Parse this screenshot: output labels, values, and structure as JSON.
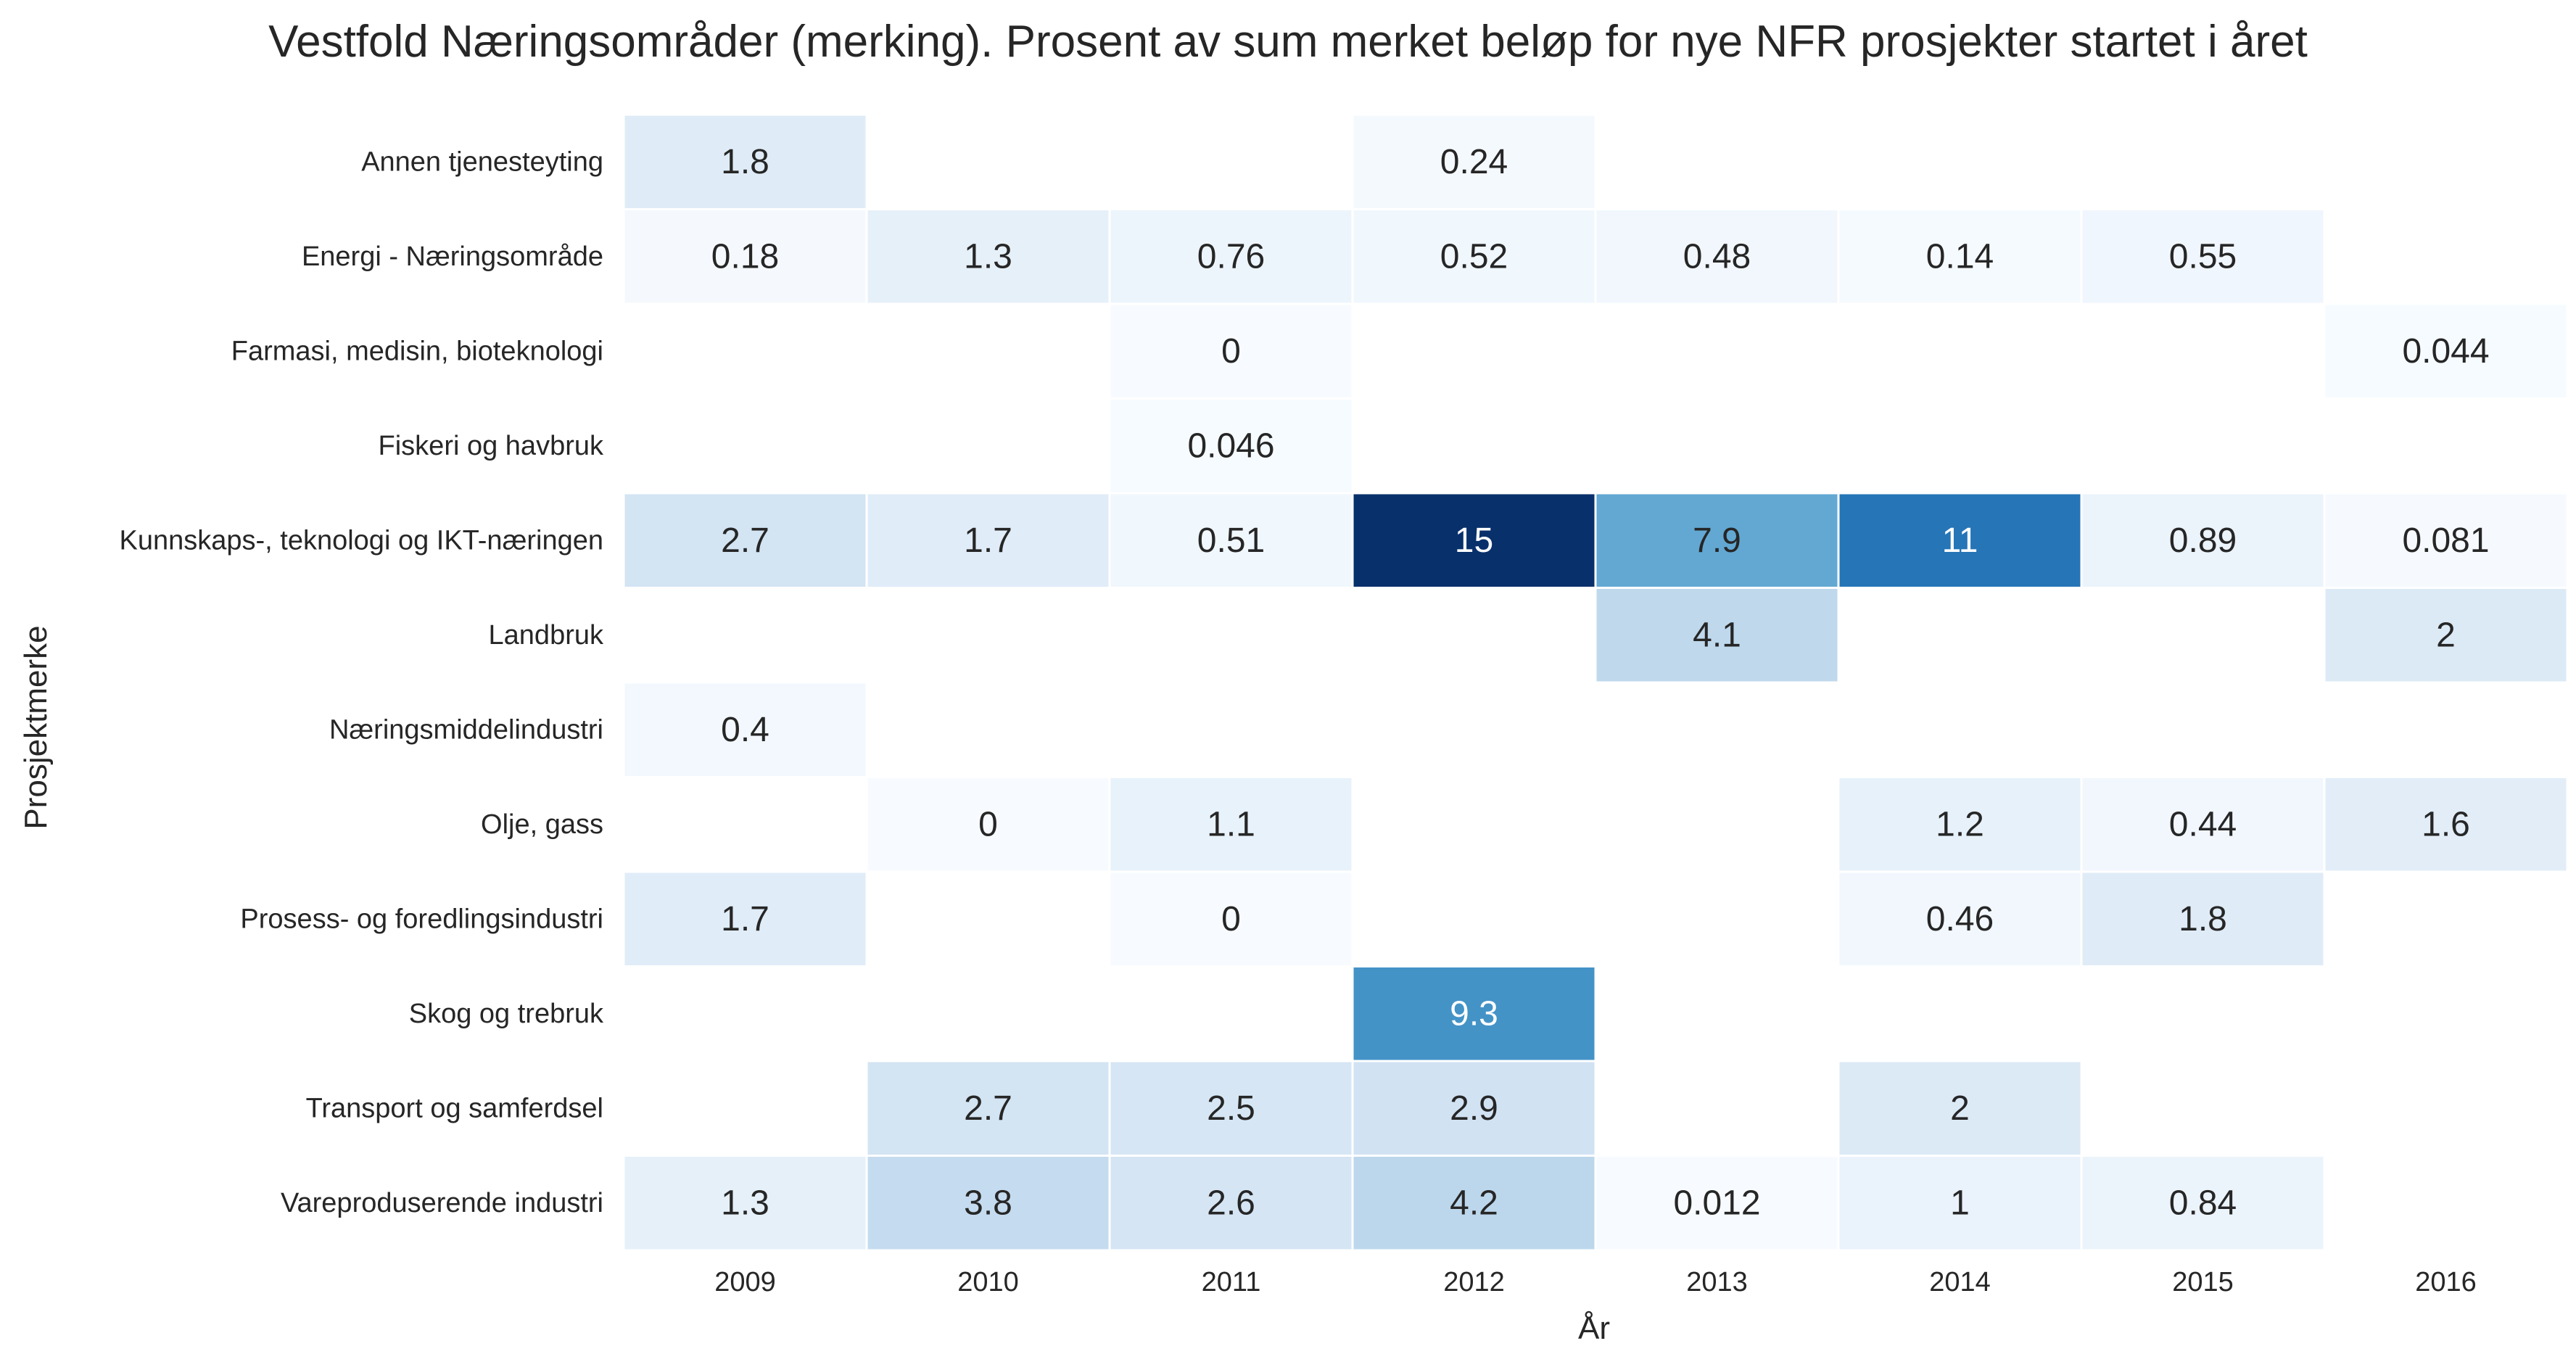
{
  "chart_data": {
    "type": "heatmap",
    "title": "Vestfold Næringsområder (merking). Prosent av sum merket beløp for nye NFR prosjekter startet i året",
    "xlabel": "År",
    "ylabel": "Prosjektmerke",
    "x": [
      "2009",
      "2010",
      "2011",
      "2012",
      "2013",
      "2014",
      "2015",
      "2016"
    ],
    "y": [
      "Annen tjenesteyting",
      "Energi - Næringsområde",
      "Farmasi, medisin, bioteknologi",
      "Fiskeri og havbruk",
      "Kunnskaps-, teknologi og IKT-næringen",
      "Landbruk",
      "Næringsmiddelindustri",
      "Olje, gass",
      "Prosess- og foredlingsindustri",
      "Skog og trebruk",
      "Transport og samferdsel",
      "Vareproduserende industri"
    ],
    "values": [
      [
        1.8,
        null,
        null,
        0.24,
        null,
        null,
        null,
        null
      ],
      [
        0.18,
        1.3,
        0.76,
        0.52,
        0.48,
        0.14,
        0.55,
        null
      ],
      [
        null,
        null,
        0,
        null,
        null,
        null,
        null,
        0.044
      ],
      [
        null,
        null,
        0.046,
        null,
        null,
        null,
        null,
        null
      ],
      [
        2.7,
        1.7,
        0.51,
        15,
        7.9,
        11,
        0.89,
        0.081
      ],
      [
        null,
        null,
        null,
        null,
        4.1,
        null,
        null,
        2
      ],
      [
        0.4,
        null,
        null,
        null,
        null,
        null,
        null,
        null
      ],
      [
        null,
        0,
        1.1,
        null,
        null,
        1.2,
        0.44,
        1.6
      ],
      [
        1.7,
        null,
        0,
        null,
        null,
        0.46,
        1.8,
        null
      ],
      [
        null,
        null,
        null,
        9.3,
        null,
        null,
        null,
        null
      ],
      [
        null,
        2.7,
        2.5,
        2.9,
        null,
        2,
        null,
        null
      ],
      [
        1.3,
        3.8,
        2.6,
        4.2,
        0.012,
        1,
        0.84,
        null
      ]
    ],
    "value_labels": [
      [
        "1.8",
        "",
        "",
        "0.24",
        "",
        "",
        "",
        ""
      ],
      [
        "0.18",
        "1.3",
        "0.76",
        "0.52",
        "0.48",
        "0.14",
        "0.55",
        ""
      ],
      [
        "",
        "",
        "0",
        "",
        "",
        "",
        "",
        "0.044"
      ],
      [
        "",
        "",
        "0.046",
        "",
        "",
        "",
        "",
        ""
      ],
      [
        "2.7",
        "1.7",
        "0.51",
        "15",
        "7.9",
        "11",
        "0.89",
        "0.081"
      ],
      [
        "",
        "",
        "",
        "",
        "4.1",
        "",
        "",
        "2"
      ],
      [
        "0.4",
        "",
        "",
        "",
        "",
        "",
        "",
        ""
      ],
      [
        "",
        "0",
        "1.1",
        "",
        "",
        "1.2",
        "0.44",
        "1.6"
      ],
      [
        "1.7",
        "",
        "0",
        "",
        "",
        "0.46",
        "1.8",
        ""
      ],
      [
        "",
        "",
        "",
        "9.3",
        "",
        "",
        "",
        ""
      ],
      [
        "",
        "2.7",
        "2.5",
        "2.9",
        "",
        "2",
        "",
        ""
      ],
      [
        "1.3",
        "3.8",
        "2.6",
        "4.2",
        "0.012",
        "1",
        "0.84",
        ""
      ]
    ],
    "colormap": "Blues",
    "vmin": 0,
    "vmax": 15,
    "grid": false,
    "legend": "none"
  }
}
